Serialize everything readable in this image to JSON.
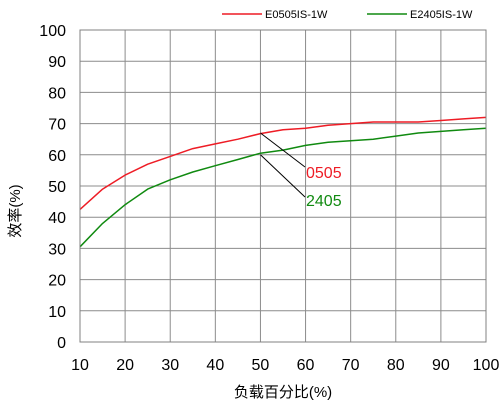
{
  "chart_data": {
    "type": "line",
    "title": "",
    "xlabel": "负载百分比(%)",
    "ylabel": "效率(%)",
    "xlim": [
      10,
      100
    ],
    "ylim": [
      0,
      100
    ],
    "xticks": [
      10,
      20,
      30,
      40,
      50,
      60,
      70,
      80,
      90,
      100
    ],
    "yticks": [
      0,
      10,
      20,
      30,
      40,
      50,
      60,
      70,
      80,
      90,
      100
    ],
    "grid": true,
    "legend_position": "top-right",
    "series": [
      {
        "name": "E0505IS-1W",
        "color": "#ee1c25",
        "x": [
          10,
          15,
          20,
          25,
          30,
          35,
          40,
          45,
          50,
          55,
          60,
          65,
          70,
          75,
          80,
          85,
          90,
          95,
          100
        ],
        "y": [
          42.5,
          49,
          53.5,
          57,
          59.5,
          62,
          63.5,
          65,
          66.8,
          68,
          68.5,
          69.5,
          70,
          70.5,
          70.5,
          70.5,
          71,
          71.5,
          72
        ]
      },
      {
        "name": "E2405IS-1W",
        "color": "#108a10",
        "x": [
          10,
          15,
          20,
          25,
          30,
          35,
          40,
          45,
          50,
          55,
          60,
          65,
          70,
          75,
          80,
          85,
          90,
          95,
          100
        ],
        "y": [
          30.5,
          38,
          44,
          49,
          52,
          54.5,
          56.5,
          58.5,
          60.5,
          61.5,
          63,
          64,
          64.5,
          65,
          66,
          67,
          67.5,
          68,
          68.5
        ]
      }
    ],
    "annotations": [
      {
        "text": "0505",
        "color": "#ee1c25",
        "target": [
          50,
          67
        ]
      },
      {
        "text": "2405",
        "color": "#108a10",
        "target": [
          50,
          60
        ]
      }
    ]
  }
}
